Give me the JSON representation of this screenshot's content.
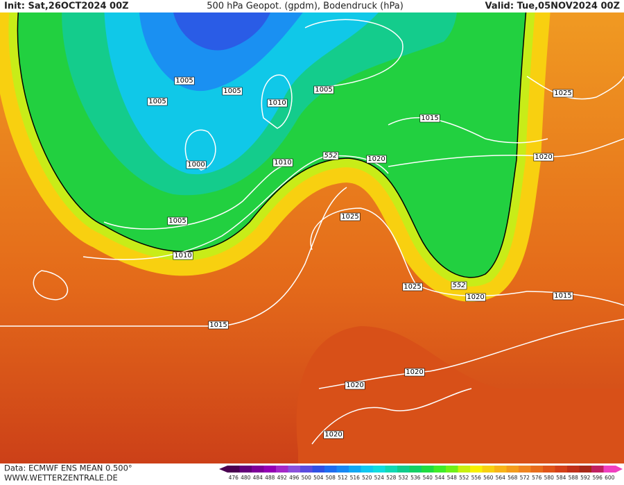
{
  "header": {
    "init": "Init: Sat,26OCT2024 00Z",
    "title": "500 hPa Geopot. (gpdm), Bodendruck (hPa)",
    "valid": "Valid: Tue,05NOV2024 00Z"
  },
  "footer": {
    "data": "Data: ECMWF ENS MEAN 0.500°",
    "website": "WWW.WETTERZENTRALE.DE"
  },
  "isobar_labels": [
    1005,
    1005,
    1005,
    1005,
    1010,
    1000,
    1010,
    1020,
    1015,
    1025,
    1020,
    1005,
    1010,
    1025,
    1025,
    1020,
    1015,
    1015,
    1020,
    1020,
    1020
  ],
  "contour_labels": [
    552,
    552
  ],
  "legend": {
    "ticks": [
      476,
      480,
      484,
      488,
      492,
      496,
      500,
      504,
      508,
      512,
      516,
      520,
      524,
      528,
      532,
      536,
      540,
      544,
      548,
      552,
      556,
      560,
      564,
      568,
      572,
      576,
      580,
      584,
      588,
      592,
      596,
      600
    ],
    "colors": [
      "#4a0050",
      "#64007a",
      "#7e0098",
      "#9400b4",
      "#a428c8",
      "#8a50dc",
      "#5a4ce0",
      "#3050e4",
      "#1e6cf0",
      "#1888f4",
      "#10a8f4",
      "#10c8f0",
      "#10dce0",
      "#10d8b4",
      "#10cc8c",
      "#14d064",
      "#20dc40",
      "#40ec28",
      "#70f018",
      "#c8f010",
      "#f8f000",
      "#f8d010",
      "#f8b418",
      "#f49c1c",
      "#f08420",
      "#e86c1c",
      "#e05418",
      "#d44018",
      "#c03018",
      "#a82818",
      "#c02060",
      "#f040c0"
    ]
  }
}
